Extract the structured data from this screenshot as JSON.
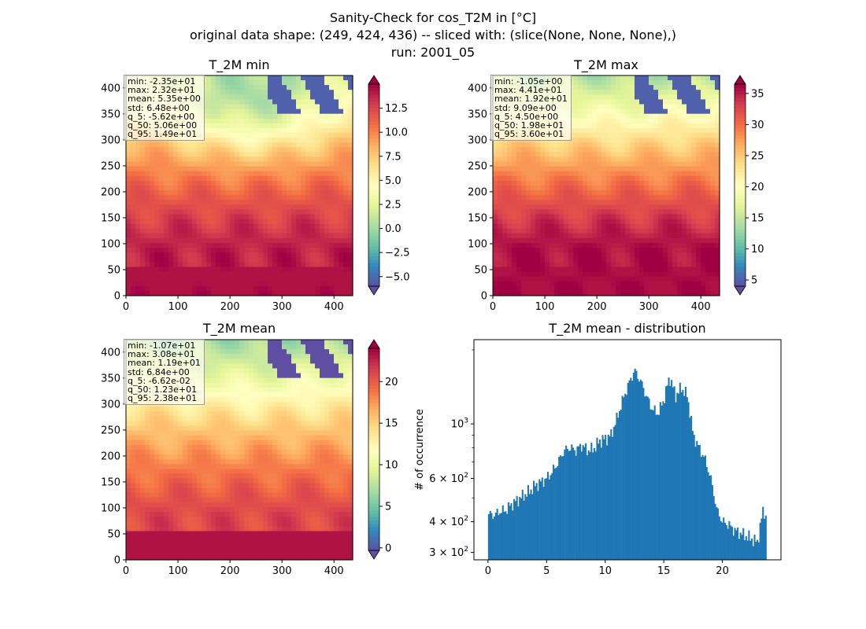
{
  "figure": {
    "title_line1": "Sanity-Check for cos_T2M in [°C]",
    "title_line2": "original data shape: (249, 424, 436) -- sliced with: (slice(None, None, None),)",
    "title_line3": "run: 2001_05"
  },
  "colors": {
    "spectral_r": [
      "#5e4fa2",
      "#3288bd",
      "#66c2a5",
      "#abdda4",
      "#e6f598",
      "#ffffbf",
      "#fee08b",
      "#fdae61",
      "#f46d43",
      "#d53e4f",
      "#9e0142"
    ],
    "histogram_bar": "#1f77b4"
  },
  "chart_data": [
    {
      "type": "heatmap",
      "title": "T_2M min",
      "xlim": [
        0,
        436
      ],
      "ylim": [
        0,
        424
      ],
      "xticks": [
        "0",
        "100",
        "200",
        "300",
        "400"
      ],
      "yticks": [
        "0",
        "50",
        "100",
        "150",
        "200",
        "250",
        "300",
        "350",
        "400"
      ],
      "colorbar": {
        "cmap": "Spectral_r",
        "range": [
          -6.0,
          15.0
        ],
        "extend": "both",
        "ticks": [
          "−5.0",
          "−2.5",
          "0.0",
          "2.5",
          "5.0",
          "7.5",
          "10.0",
          "12.5"
        ]
      },
      "stats": [
        "min: -2.35e+01",
        "max: 2.32e+01",
        "mean: 5.35e+00",
        "std: 6.48e+00",
        "q_5: -5.62e+00",
        "q_50: 5.06e+00",
        "q_95: 1.49e+01"
      ]
    },
    {
      "type": "heatmap",
      "title": "T_2M max",
      "xlim": [
        0,
        436
      ],
      "ylim": [
        0,
        424
      ],
      "xticks": [
        "0",
        "100",
        "200",
        "300",
        "400"
      ],
      "yticks": [
        "0",
        "50",
        "100",
        "150",
        "200",
        "250",
        "300",
        "350",
        "400"
      ],
      "colorbar": {
        "cmap": "Spectral_r",
        "range": [
          4.0,
          36.5
        ],
        "extend": "both",
        "ticks": [
          "5",
          "10",
          "15",
          "20",
          "25",
          "30",
          "35"
        ]
      },
      "stats": [
        "min: -1.05e+00",
        "max: 4.41e+01",
        "mean: 1.92e+01",
        "std: 9.09e+00",
        "q_5: 4.50e+00",
        "q_50: 1.98e+01",
        "q_95: 3.60e+01"
      ]
    },
    {
      "type": "heatmap",
      "title": "T_2M mean",
      "xlim": [
        0,
        436
      ],
      "ylim": [
        0,
        424
      ],
      "xticks": [
        "0",
        "100",
        "200",
        "300",
        "400"
      ],
      "yticks": [
        "0",
        "50",
        "100",
        "150",
        "200",
        "250",
        "300",
        "350",
        "400"
      ],
      "colorbar": {
        "cmap": "Spectral_r",
        "range": [
          -0.3,
          24.0
        ],
        "extend": "both",
        "ticks": [
          "0",
          "5",
          "10",
          "15",
          "20"
        ]
      },
      "stats": [
        "min: -1.07e+01",
        "max: 3.08e+01",
        "mean: 1.19e+01",
        "std: 6.84e+00",
        "q_5: -6.62e-02",
        "q_50: 1.23e+01",
        "q_95: 2.38e+01"
      ]
    },
    {
      "type": "bar",
      "title": "T_2M mean - distribution",
      "ylabel": "# of occurrence",
      "xlabel": "",
      "yscale": "log",
      "xlim": [
        -1.2,
        25.0
      ],
      "ylim": [
        280,
        2200
      ],
      "xticks": [
        "0",
        "5",
        "10",
        "15",
        "20"
      ],
      "yticks_major": [
        {
          "base": "10",
          "exp": "3"
        },
        {
          "base": "6 × 10",
          "exp": "2"
        },
        {
          "base": "4 × 10",
          "exp": "2"
        },
        {
          "base": "3 × 10",
          "exp": "2"
        }
      ],
      "bin_width": 0.12,
      "profile": [
        [
          0,
          430
        ],
        [
          0.5,
          425
        ],
        [
          1,
          440
        ],
        [
          1.5,
          445
        ],
        [
          2,
          470
        ],
        [
          2.5,
          490
        ],
        [
          3,
          510
        ],
        [
          3.5,
          530
        ],
        [
          4,
          560
        ],
        [
          4.5,
          580
        ],
        [
          5,
          600
        ],
        [
          5.5,
          640
        ],
        [
          6,
          700
        ],
        [
          6.5,
          780
        ],
        [
          7,
          800
        ],
        [
          7.5,
          780
        ],
        [
          8,
          820
        ],
        [
          8.5,
          780
        ],
        [
          9,
          790
        ],
        [
          9.5,
          850
        ],
        [
          10,
          870
        ],
        [
          10.5,
          900
        ],
        [
          11,
          1050
        ],
        [
          11.5,
          1250
        ],
        [
          12,
          1450
        ],
        [
          12.5,
          1650
        ],
        [
          13,
          1500
        ],
        [
          13.5,
          1300
        ],
        [
          14,
          1150
        ],
        [
          14.5,
          1100
        ],
        [
          15,
          1250
        ],
        [
          15.5,
          1550
        ],
        [
          16,
          1300
        ],
        [
          16.5,
          1400
        ],
        [
          17,
          1300
        ],
        [
          17.5,
          900
        ],
        [
          18,
          800
        ],
        [
          18.5,
          720
        ],
        [
          19,
          600
        ],
        [
          19.5,
          450
        ],
        [
          20,
          400
        ],
        [
          20.5,
          390
        ],
        [
          21,
          370
        ],
        [
          21.5,
          360
        ],
        [
          22,
          350
        ],
        [
          22.5,
          340
        ],
        [
          23,
          330
        ],
        [
          23.5,
          450
        ],
        [
          23.7,
          420
        ]
      ]
    }
  ]
}
